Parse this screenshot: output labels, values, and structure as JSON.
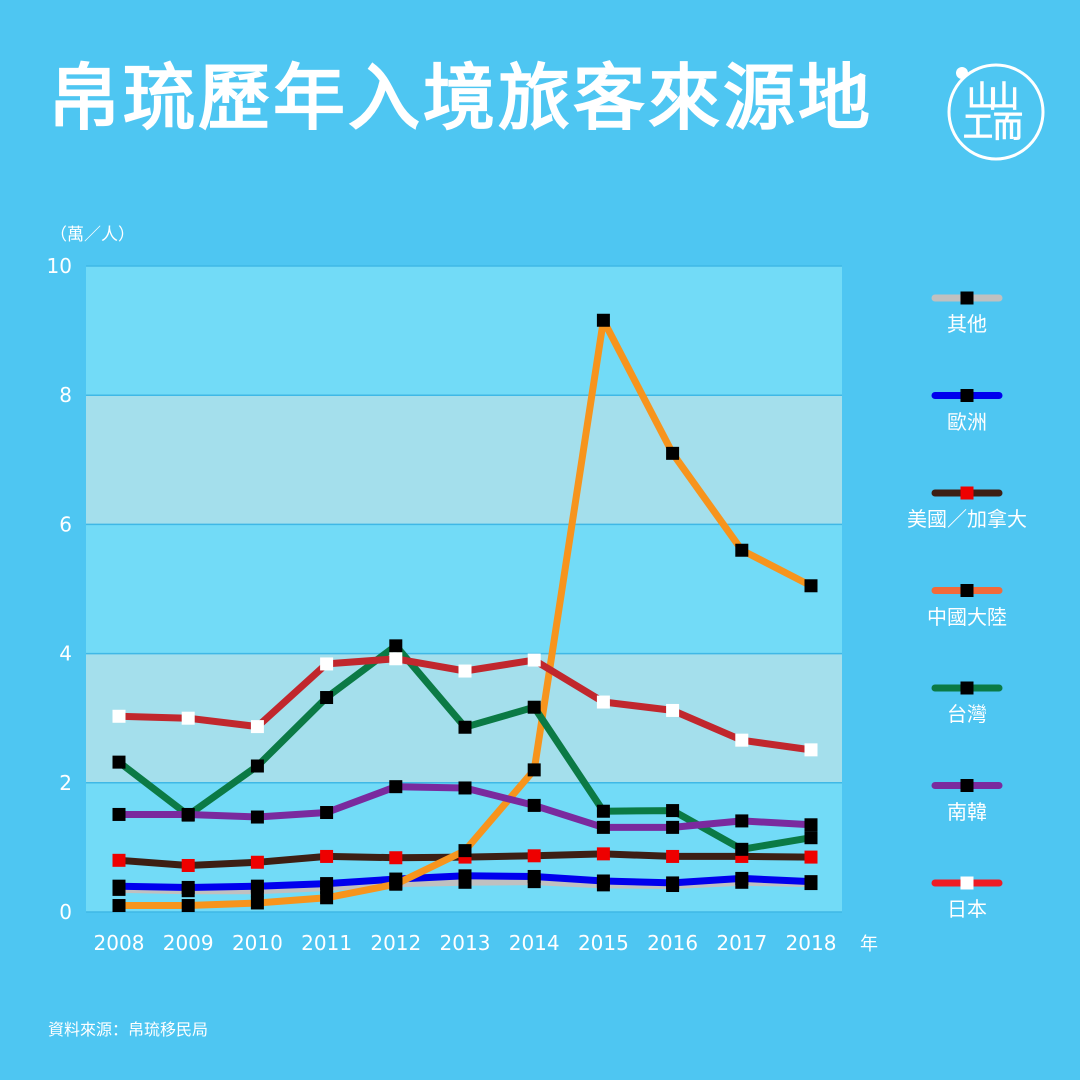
{
  "title": "帛琉歷年入境旅客來源地",
  "unit_label": "（萬／人）",
  "source": "資料來源：帛琉移民局",
  "colors": {
    "background": "#4ec6f2",
    "plot_light": "#72dbf7",
    "plot_band": "#a4dfec",
    "gridline": "#3fb8e6",
    "text": "#ffffff"
  },
  "logo_icon": "initium-logo-icon",
  "chart_data": {
    "type": "line",
    "title": "帛琉歷年入境旅客來源地",
    "xlabel": "年",
    "ylabel": "（萬／人）",
    "x": [
      2008,
      2009,
      2010,
      2011,
      2012,
      2013,
      2014,
      2015,
      2016,
      2017,
      2018
    ],
    "ylim": [
      0,
      10
    ],
    "yticks": [
      0,
      2,
      4,
      6,
      8,
      10
    ],
    "grid": true,
    "legend_position": "right",
    "series": [
      {
        "name": "其他",
        "color": "#c0c0c0",
        "marker": "#000000",
        "values": [
          0.35,
          0.33,
          0.33,
          0.38,
          0.44,
          0.46,
          0.47,
          0.42,
          0.41,
          0.46,
          0.44
        ]
      },
      {
        "name": "歐洲",
        "color": "#0000ee",
        "marker": "#000000",
        "values": [
          0.4,
          0.38,
          0.4,
          0.44,
          0.51,
          0.56,
          0.55,
          0.48,
          0.45,
          0.52,
          0.47
        ]
      },
      {
        "name": "美國／加拿大",
        "color": "#3d1f14",
        "marker": "#ee0000",
        "values": [
          0.8,
          0.72,
          0.77,
          0.86,
          0.84,
          0.85,
          0.87,
          0.9,
          0.86,
          0.86,
          0.85
        ]
      },
      {
        "name": "中國大陸",
        "color": "#f7941d",
        "legend_color": "#f26a3a",
        "marker": "#000000",
        "values": [
          0.1,
          0.1,
          0.14,
          0.22,
          0.43,
          0.95,
          2.2,
          9.16,
          7.1,
          5.6,
          5.05
        ]
      },
      {
        "name": "台灣",
        "color": "#0b7a45",
        "marker": "#000000",
        "values": [
          2.32,
          1.5,
          2.26,
          3.32,
          4.12,
          2.86,
          3.17,
          1.56,
          1.57,
          0.97,
          1.15
        ]
      },
      {
        "name": "南韓",
        "color": "#7a2a9e",
        "marker": "#000000",
        "values": [
          1.51,
          1.51,
          1.47,
          1.54,
          1.94,
          1.92,
          1.65,
          1.31,
          1.31,
          1.41,
          1.35
        ]
      },
      {
        "name": "日本",
        "color": "#c1272d",
        "legend_color": "#ee1c25",
        "marker": "#ffffff",
        "values": [
          3.03,
          3.0,
          2.87,
          3.84,
          3.92,
          3.73,
          3.9,
          3.25,
          3.12,
          2.66,
          2.51
        ]
      }
    ]
  }
}
